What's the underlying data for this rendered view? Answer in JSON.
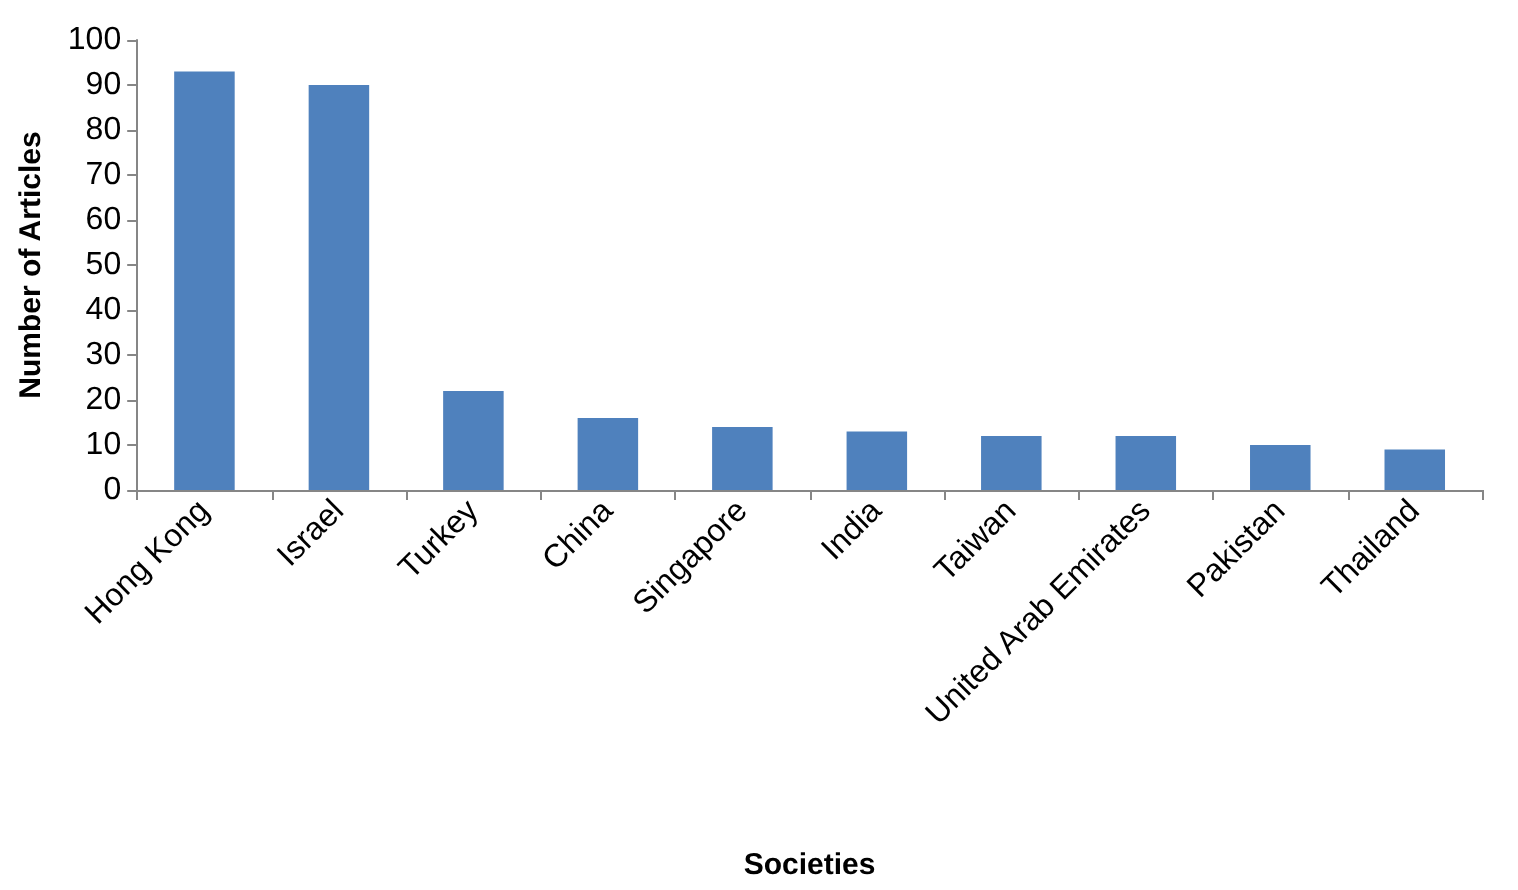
{
  "chart_data": {
    "type": "bar",
    "xlabel": "Societies",
    "ylabel": "Number of Articles",
    "categories": [
      "Hong Kong",
      "Israel",
      "Turkey",
      "China",
      "Singapore",
      "India",
      "Taiwan",
      "United Arab Emirates",
      "Pakistan",
      "Thailand"
    ],
    "values": [
      93,
      90,
      22,
      16,
      14,
      13,
      12,
      12,
      10,
      9
    ],
    "color": "#4f81bd",
    "ylim": [
      0,
      100
    ],
    "yticks": [
      0,
      10,
      20,
      30,
      40,
      50,
      60,
      70,
      80,
      90,
      100
    ],
    "grid": false
  }
}
